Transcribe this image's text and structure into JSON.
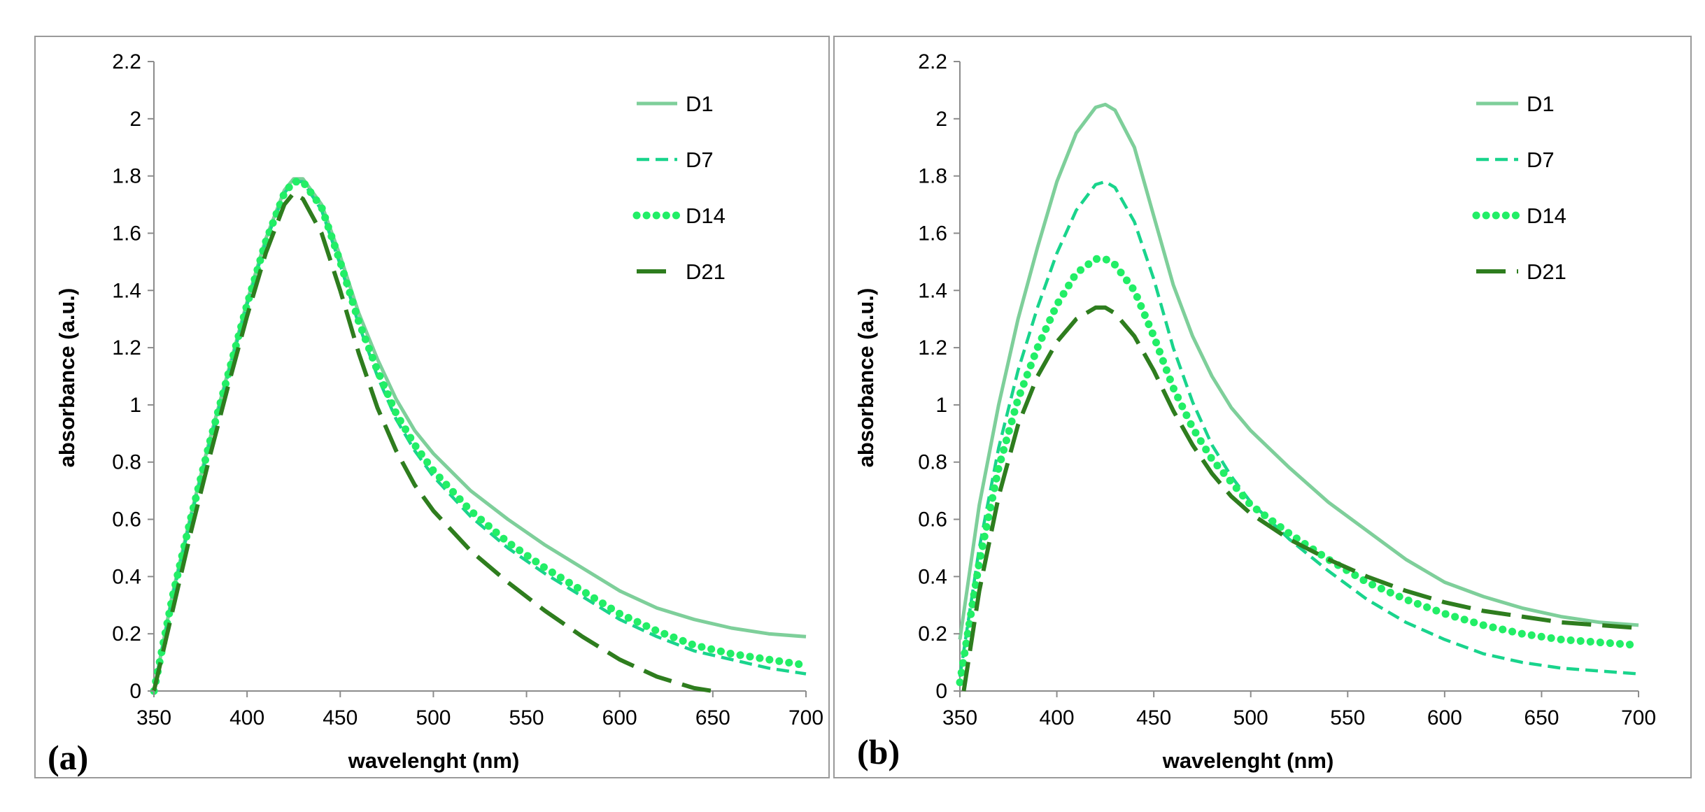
{
  "figure": {
    "colors": {
      "frame": "#9a9a9a",
      "axis": "#8c8c8c",
      "text": "#000000"
    }
  },
  "chart_data": [
    {
      "panel_label": "(a)",
      "type": "line",
      "xlabel": "wavelenght (nm)",
      "ylabel": "absorbance (a.u.)",
      "xlim": [
        350,
        700
      ],
      "ylim": [
        0,
        2.2
      ],
      "xticks": [
        350,
        400,
        450,
        500,
        550,
        600,
        650,
        700
      ],
      "yticks": [
        0,
        0.2,
        0.4,
        0.6,
        0.8,
        1,
        1.2,
        1.4,
        1.6,
        1.8,
        2,
        2.2
      ],
      "ytick_labels": [
        "0",
        "0.2",
        "0.4",
        "0.6",
        "0.8",
        "1",
        "1.2",
        "1.4",
        "1.6",
        "1.8",
        "2",
        "2.2"
      ],
      "grid": false,
      "legend": "top-right",
      "series": [
        {
          "name": "D1",
          "style": "solid",
          "color": "#7ecf9a",
          "x": [
            350,
            360,
            370,
            380,
            390,
            400,
            410,
            420,
            425,
            430,
            440,
            450,
            460,
            470,
            480,
            490,
            500,
            520,
            540,
            560,
            580,
            600,
            620,
            640,
            660,
            680,
            700
          ],
          "y": [
            0.0,
            0.34,
            0.62,
            0.88,
            1.12,
            1.36,
            1.58,
            1.75,
            1.79,
            1.79,
            1.7,
            1.52,
            1.32,
            1.16,
            1.02,
            0.91,
            0.83,
            0.7,
            0.6,
            0.51,
            0.43,
            0.35,
            0.29,
            0.25,
            0.22,
            0.2,
            0.19
          ]
        },
        {
          "name": "D7",
          "style": "dashed",
          "color": "#19d48c",
          "x": [
            350,
            360,
            370,
            380,
            390,
            400,
            410,
            420,
            425,
            430,
            440,
            450,
            460,
            470,
            480,
            490,
            500,
            520,
            540,
            560,
            580,
            600,
            620,
            640,
            660,
            680,
            700
          ],
          "y": [
            0.0,
            0.33,
            0.61,
            0.87,
            1.11,
            1.35,
            1.57,
            1.74,
            1.78,
            1.78,
            1.68,
            1.49,
            1.28,
            1.1,
            0.95,
            0.84,
            0.75,
            0.61,
            0.5,
            0.41,
            0.33,
            0.25,
            0.19,
            0.14,
            0.11,
            0.08,
            0.06
          ]
        },
        {
          "name": "D14",
          "style": "dotted",
          "color": "#22ee66",
          "x": [
            350,
            360,
            370,
            380,
            390,
            400,
            410,
            420,
            425,
            430,
            440,
            450,
            460,
            470,
            480,
            490,
            500,
            520,
            540,
            560,
            580,
            600,
            620,
            640,
            660,
            680,
            700
          ],
          "y": [
            0.0,
            0.33,
            0.61,
            0.87,
            1.11,
            1.35,
            1.57,
            1.74,
            1.78,
            1.78,
            1.69,
            1.5,
            1.29,
            1.12,
            0.97,
            0.86,
            0.77,
            0.63,
            0.52,
            0.43,
            0.35,
            0.27,
            0.21,
            0.16,
            0.13,
            0.11,
            0.09
          ]
        },
        {
          "name": "D21",
          "style": "long-dash",
          "color": "#2e7d1e",
          "x": [
            350,
            360,
            370,
            380,
            390,
            400,
            410,
            420,
            425,
            430,
            440,
            450,
            460,
            470,
            480,
            490,
            500,
            520,
            540,
            560,
            580,
            600,
            620,
            640,
            650
          ],
          "y": [
            0.0,
            0.28,
            0.56,
            0.82,
            1.07,
            1.31,
            1.53,
            1.7,
            1.74,
            1.72,
            1.6,
            1.4,
            1.18,
            0.99,
            0.84,
            0.72,
            0.63,
            0.49,
            0.38,
            0.28,
            0.19,
            0.11,
            0.05,
            0.01,
            0.0
          ]
        }
      ]
    },
    {
      "panel_label": "(b)",
      "type": "line",
      "xlabel": "wavelenght (nm)",
      "ylabel": "absorbance (a.u.)",
      "xlim": [
        350,
        700
      ],
      "ylim": [
        0,
        2.2
      ],
      "xticks": [
        350,
        400,
        450,
        500,
        550,
        600,
        650,
        700
      ],
      "yticks": [
        0,
        0.2,
        0.4,
        0.6,
        0.8,
        1,
        1.2,
        1.4,
        1.6,
        1.8,
        2,
        2.2
      ],
      "ytick_labels": [
        "0",
        "0.2",
        "0.4",
        "0.6",
        "0.8",
        "1",
        "1.2",
        "1.4",
        "1.6",
        "1.8",
        "2",
        "2.2"
      ],
      "grid": false,
      "legend": "top-right",
      "series": [
        {
          "name": "D1",
          "style": "solid",
          "color": "#7ecf9a",
          "x": [
            350,
            360,
            370,
            380,
            390,
            400,
            410,
            420,
            425,
            430,
            440,
            450,
            460,
            470,
            480,
            490,
            500,
            520,
            540,
            560,
            580,
            600,
            620,
            640,
            660,
            680,
            700
          ],
          "y": [
            0.18,
            0.65,
            1.0,
            1.3,
            1.55,
            1.78,
            1.95,
            2.04,
            2.05,
            2.03,
            1.9,
            1.66,
            1.42,
            1.24,
            1.1,
            0.99,
            0.91,
            0.78,
            0.66,
            0.56,
            0.46,
            0.38,
            0.33,
            0.29,
            0.26,
            0.24,
            0.23
          ]
        },
        {
          "name": "D7",
          "style": "dashed",
          "color": "#19d48c",
          "x": [
            350,
            360,
            370,
            380,
            390,
            400,
            410,
            420,
            425,
            430,
            440,
            450,
            460,
            470,
            480,
            490,
            500,
            520,
            540,
            560,
            580,
            600,
            620,
            640,
            660,
            680,
            700
          ],
          "y": [
            0.05,
            0.5,
            0.85,
            1.12,
            1.34,
            1.53,
            1.68,
            1.77,
            1.78,
            1.76,
            1.64,
            1.44,
            1.2,
            1.01,
            0.86,
            0.75,
            0.66,
            0.53,
            0.42,
            0.32,
            0.24,
            0.18,
            0.13,
            0.1,
            0.08,
            0.07,
            0.06
          ]
        },
        {
          "name": "D14",
          "style": "dotted",
          "color": "#22ee66",
          "x": [
            350,
            360,
            370,
            380,
            390,
            400,
            410,
            420,
            425,
            430,
            440,
            450,
            460,
            470,
            480,
            490,
            500,
            520,
            540,
            560,
            580,
            600,
            620,
            640,
            660,
            680,
            700
          ],
          "y": [
            0.03,
            0.45,
            0.78,
            1.02,
            1.2,
            1.35,
            1.46,
            1.51,
            1.51,
            1.49,
            1.4,
            1.24,
            1.06,
            0.92,
            0.81,
            0.73,
            0.65,
            0.55,
            0.46,
            0.38,
            0.32,
            0.27,
            0.23,
            0.2,
            0.18,
            0.17,
            0.16
          ]
        },
        {
          "name": "D21",
          "style": "long-dash",
          "color": "#2e7d1e",
          "x": [
            352,
            360,
            370,
            380,
            390,
            400,
            410,
            420,
            425,
            430,
            440,
            450,
            460,
            470,
            480,
            490,
            500,
            520,
            540,
            560,
            580,
            600,
            620,
            640,
            660,
            680,
            700
          ],
          "y": [
            0.0,
            0.35,
            0.68,
            0.93,
            1.1,
            1.22,
            1.3,
            1.34,
            1.34,
            1.32,
            1.24,
            1.12,
            0.98,
            0.86,
            0.76,
            0.68,
            0.62,
            0.53,
            0.46,
            0.4,
            0.35,
            0.31,
            0.28,
            0.26,
            0.24,
            0.23,
            0.22
          ]
        }
      ]
    }
  ]
}
